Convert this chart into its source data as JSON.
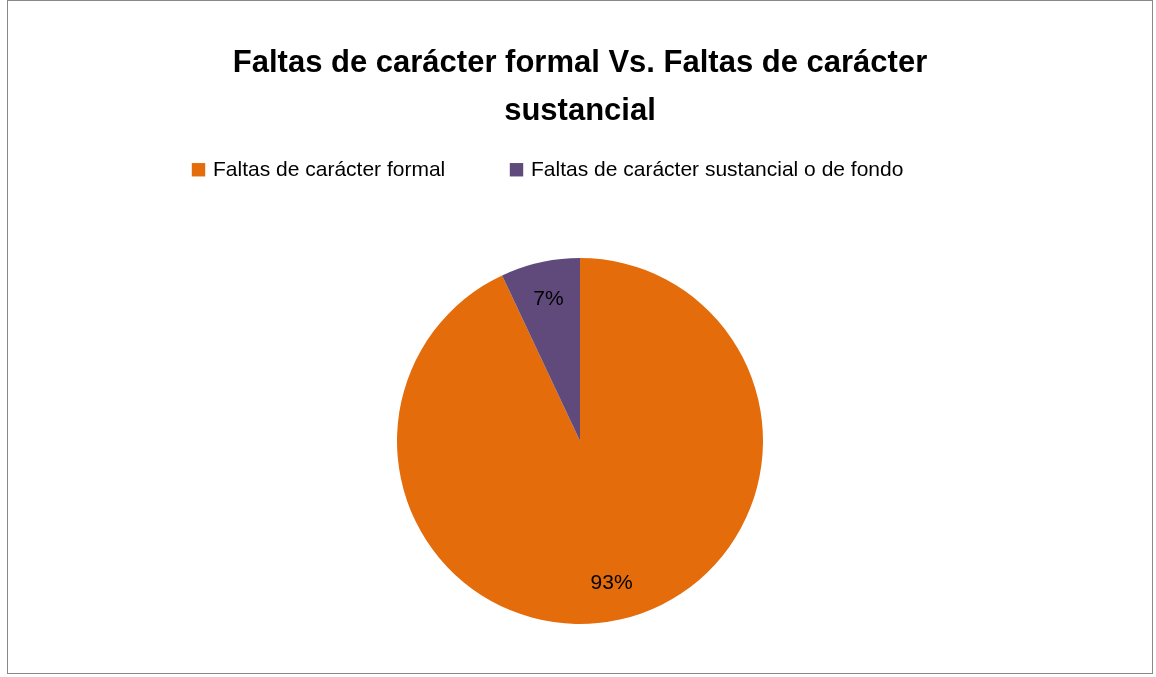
{
  "chart_data": {
    "type": "pie",
    "title": "Faltas de carácter formal Vs. Faltas de carácter sustancial",
    "categories": [
      "Faltas de carácter formal",
      "Faltas de carácter sustancial o de fondo"
    ],
    "values": [
      93,
      7
    ],
    "colors": [
      "#e46c0a",
      "#604a7b"
    ],
    "value_labels": [
      "93%",
      "7%"
    ],
    "legend": "top"
  }
}
